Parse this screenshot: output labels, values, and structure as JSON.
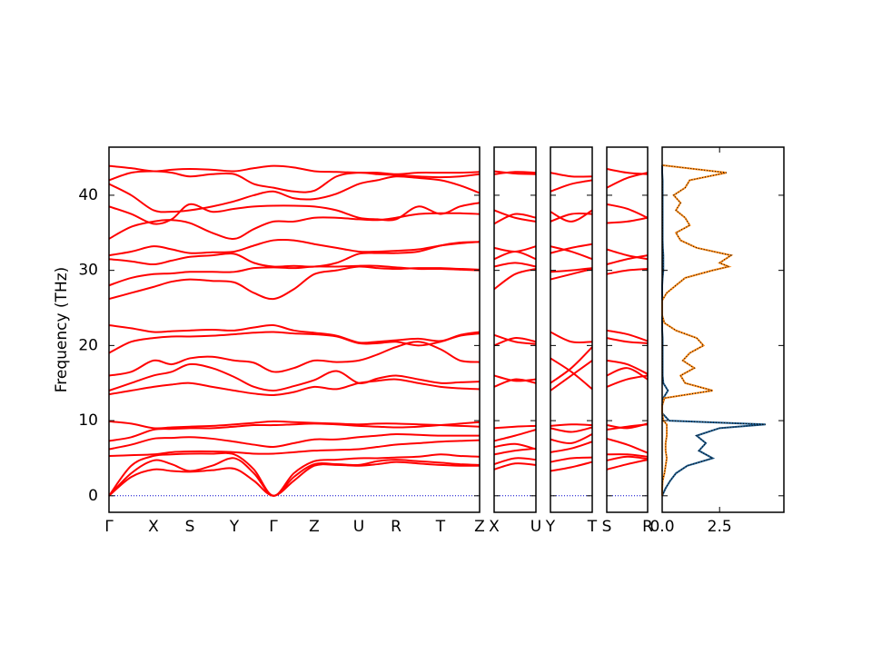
{
  "chart_data": {
    "type": "band_structure",
    "ylabel": "Frequency (THz)",
    "ylim": [
      -2.2,
      46.4
    ],
    "yticks": [
      0,
      10,
      20,
      30,
      40
    ],
    "band_color": "#ff0000",
    "zero_line_color": "#0000cc",
    "panels": [
      {
        "xlim": [
          0,
          4.08
        ],
        "xticks": [
          0,
          0.49,
          0.89,
          1.38,
          1.81,
          2.26,
          2.75,
          3.16,
          3.65,
          4.08
        ],
        "labels": [
          "Γ",
          "X",
          "S",
          "Y",
          "Γ",
          "Z",
          "U",
          "R",
          "T",
          "Z"
        ],
        "x": [
          0,
          0.245,
          0.49,
          0.69,
          0.89,
          1.135,
          1.38,
          1.595,
          1.81,
          2.035,
          2.26,
          2.505,
          2.75,
          2.955,
          3.16,
          3.405,
          3.65,
          3.865,
          4.08
        ],
        "bands": [
          [
            0,
            2.5,
            3.5,
            3.3,
            3.2,
            3.4,
            3.6,
            2,
            0,
            2,
            4,
            4.1,
            4.0,
            4.2,
            4.5,
            4.3,
            4.1,
            4.0,
            4.0
          ],
          [
            0,
            3,
            4.7,
            4.2,
            3.3,
            4,
            5,
            3,
            0,
            2.5,
            4.2,
            4.2,
            4.1,
            4.6,
            4.8,
            4.6,
            4.4,
            4.2,
            4.1
          ],
          [
            0,
            4,
            5.3,
            5.5,
            5.6,
            5.6,
            5.5,
            3.5,
            0,
            3,
            4.6,
            4.8,
            5,
            5,
            5.1,
            5.2,
            5.5,
            5.3,
            5.2
          ],
          [
            5.3,
            5.4,
            5.5,
            5.8,
            5.9,
            5.9,
            5.8,
            5.6,
            5.6,
            5.8,
            6,
            6.1,
            6.2,
            6.5,
            6.8,
            7,
            7.2,
            7.3,
            7.4
          ],
          [
            6.2,
            6.8,
            7.6,
            7.7,
            7.8,
            7.6,
            7.2,
            6.8,
            6.5,
            7,
            7.5,
            7.5,
            7.8,
            8,
            8.2,
            8.1,
            8,
            8,
            8
          ],
          [
            7.3,
            7.8,
            8.8,
            8.9,
            9,
            9,
            9.2,
            9.4,
            9.4,
            9.5,
            9.6,
            9.5,
            9.3,
            9.2,
            9.1,
            9.2,
            9.4,
            9.6,
            9.8
          ],
          [
            9.9,
            9.6,
            9.0,
            9.1,
            9.2,
            9.3,
            9.5,
            9.7,
            9.9,
            9.8,
            9.7,
            9.6,
            9.5,
            9.6,
            9.6,
            9.5,
            9.4,
            9.3,
            9.2
          ],
          [
            13.5,
            14,
            14.5,
            14.8,
            15,
            14.5,
            14.0,
            13.6,
            13.4,
            13.8,
            14.5,
            14.2,
            15.0,
            15.3,
            15.5,
            15.0,
            14.5,
            14.3,
            14.2
          ],
          [
            14,
            15,
            16,
            16.5,
            17.5,
            17,
            15.8,
            14.5,
            14.0,
            14.6,
            15.4,
            16.6,
            15.0,
            15.6,
            16,
            15.5,
            15,
            15.1,
            15.2
          ],
          [
            16,
            16.5,
            18,
            17.5,
            18.3,
            18.5,
            18,
            17.7,
            16.5,
            17.0,
            18,
            17.8,
            18,
            18.8,
            19.8,
            20.5,
            19.5,
            18.0,
            17.8
          ],
          [
            19.0,
            20.5,
            21.0,
            21.2,
            21.2,
            21.3,
            21.5,
            21.7,
            21.8,
            21.6,
            21.5,
            21.2,
            20.3,
            20.3,
            20.5,
            20.0,
            20.5,
            21.3,
            21.6
          ],
          [
            22.7,
            22.3,
            21.8,
            21.9,
            22.0,
            22.1,
            22,
            22.4,
            22.7,
            22.0,
            21.7,
            21.3,
            20.4,
            20.5,
            20.7,
            20.9,
            20.6,
            21.4,
            21.8
          ],
          [
            26.2,
            27,
            27.8,
            28.5,
            28.8,
            28.6,
            28.4,
            27,
            26.2,
            27.5,
            29.5,
            30,
            30.5,
            30.3,
            30.2,
            30.3,
            30.3,
            30.2,
            30.1
          ],
          [
            28,
            29,
            29.5,
            29.6,
            29.8,
            29.8,
            29.8,
            30.3,
            30.4,
            30.3,
            30.5,
            30.5,
            30.6,
            30.6,
            30.4,
            30.2,
            30.2,
            30.1,
            30
          ],
          [
            31.5,
            31.2,
            30.8,
            31.3,
            31.8,
            32,
            32.2,
            31,
            30.5,
            30.6,
            30.5,
            31,
            32.2,
            32.3,
            32.3,
            32.5,
            33.3,
            33.7,
            33.8
          ],
          [
            32,
            32.5,
            33.2,
            32.8,
            32.3,
            32.4,
            32.5,
            33.3,
            34.0,
            34,
            33.5,
            33,
            32.5,
            32.5,
            32.6,
            32.8,
            33.3,
            33.6,
            33.8
          ],
          [
            34.2,
            35.8,
            36.5,
            36.7,
            36.3,
            35,
            34.2,
            35.5,
            36.5,
            36.5,
            37,
            37,
            36.8,
            36.7,
            37,
            37.5,
            37.6,
            37.6,
            37.5
          ],
          [
            38.5,
            37.5,
            36.2,
            36.8,
            38.8,
            37.8,
            38.2,
            38.5,
            38.6,
            38.6,
            38.5,
            38,
            37,
            36.8,
            36.8,
            38.5,
            37.5,
            38.5,
            39.0
          ],
          [
            41.5,
            40,
            38,
            37.8,
            38,
            38.5,
            39.2,
            40,
            40.5,
            39.6,
            39.5,
            40.2,
            41.5,
            42,
            42.5,
            42.3,
            42,
            41.3,
            40.3
          ],
          [
            42,
            43,
            43.2,
            43.0,
            42.5,
            42.8,
            42.8,
            41.5,
            41.0,
            40.5,
            40.6,
            42.5,
            43,
            42.8,
            42.7,
            42.5,
            42.4,
            42.5,
            42.8
          ],
          [
            43.9,
            43.6,
            43.2,
            43.4,
            43.5,
            43.4,
            43.2,
            43.6,
            43.9,
            43.7,
            43.2,
            43.1,
            43.0,
            43.0,
            42.8,
            43.0,
            43.0,
            43.0,
            43.1
          ]
        ]
      },
      {
        "xlim": [
          0,
          0.46
        ],
        "xticks": [
          0,
          0.46
        ],
        "labels": [
          "X",
          "U"
        ],
        "x": [
          0,
          0.23,
          0.46
        ],
        "bands": [
          [
            3.5,
            4.3,
            4.1
          ],
          [
            4.2,
            5,
            4.8
          ],
          [
            5.5,
            6,
            6.3
          ],
          [
            6.5,
            6.9,
            6.2
          ],
          [
            7.3,
            8,
            8.8
          ],
          [
            9,
            9.2,
            9.3
          ],
          [
            14.5,
            15.5,
            15
          ],
          [
            16,
            15.3,
            15.5
          ],
          [
            20,
            21,
            20.5
          ],
          [
            21.4,
            20.5,
            20.2
          ],
          [
            27.5,
            29.5,
            30.2
          ],
          [
            30.5,
            31,
            30.5
          ],
          [
            31.5,
            32.5,
            31.5
          ],
          [
            33,
            32.5,
            33.2
          ],
          [
            36.2,
            37.5,
            37
          ],
          [
            38,
            37,
            36.5
          ],
          [
            42.8,
            43.1,
            43
          ],
          [
            43.2,
            42.9,
            42.8
          ]
        ]
      },
      {
        "xlim": [
          0,
          0.46
        ],
        "xticks": [
          0,
          0.46
        ],
        "labels": [
          "Y",
          "T"
        ],
        "x": [
          0,
          0.23,
          0.46
        ],
        "bands": [
          [
            3.3,
            3.8,
            4.5
          ],
          [
            4.5,
            5,
            5.1
          ],
          [
            5.8,
            6.3,
            7.2
          ],
          [
            7.5,
            7.0,
            8.2
          ],
          [
            9,
            8.5,
            9.1
          ],
          [
            9.3,
            9.5,
            9.4
          ],
          [
            14,
            16,
            18
          ],
          [
            15,
            17,
            19.8
          ],
          [
            18.3,
            16.5,
            14.2
          ],
          [
            21.8,
            20.5,
            20.5
          ],
          [
            28.8,
            29.5,
            30.2
          ],
          [
            29.8,
            30,
            30.3
          ],
          [
            32.3,
            33,
            33.5
          ],
          [
            33.2,
            32.5,
            31.5
          ],
          [
            36.5,
            37.5,
            37.5
          ],
          [
            37.8,
            36.5,
            38
          ],
          [
            40.5,
            41.5,
            42
          ],
          [
            43,
            42.5,
            42.5
          ]
        ]
      },
      {
        "xlim": [
          0,
          0.45
        ],
        "xticks": [
          0,
          0.45
        ],
        "labels": [
          "S",
          "R"
        ],
        "x": [
          0,
          0.225,
          0.45
        ],
        "bands": [
          [
            3.5,
            4.2,
            4.8
          ],
          [
            4.7,
            5.2,
            4.9
          ],
          [
            5.5,
            5.5,
            5.2
          ],
          [
            7.6,
            6.8,
            5.7
          ],
          [
            8.8,
            9.2,
            9.5
          ],
          [
            9.4,
            9.0,
            9.6
          ],
          [
            14.5,
            15.5,
            16
          ],
          [
            16,
            17,
            15.5
          ],
          [
            18,
            17.5,
            16.2
          ],
          [
            21,
            20.5,
            20.3
          ],
          [
            22,
            21.5,
            20.6
          ],
          [
            29.5,
            30,
            30.2
          ],
          [
            30.8,
            31.5,
            32
          ],
          [
            32.8,
            32,
            31.5
          ],
          [
            36.3,
            36.5,
            37
          ],
          [
            38.8,
            38.2,
            37
          ],
          [
            41,
            42.3,
            43
          ],
          [
            43.5,
            43,
            42.8
          ]
        ]
      }
    ],
    "dos": {
      "xlim": [
        0,
        5.3
      ],
      "xticks": [
        {
          "value": 0,
          "label": "0.0"
        },
        2.5
      ],
      "freq": [
        0,
        1,
        2,
        3,
        4,
        5,
        6,
        7,
        8,
        9,
        9.5,
        10,
        11,
        12,
        13,
        14,
        15,
        16,
        17,
        18,
        19,
        20,
        21,
        22,
        23,
        24,
        25,
        26,
        27,
        28,
        29,
        30,
        30.5,
        31,
        32,
        33,
        34,
        35,
        36,
        37,
        38,
        39,
        40,
        41,
        42,
        43,
        44
      ],
      "series": [
        {
          "color": "#1f5b8c",
          "values": [
            0,
            0.15,
            0.35,
            0.6,
            1.1,
            2.2,
            1.6,
            1.9,
            1.5,
            2.5,
            4.5,
            0.3,
            0,
            0,
            0.05,
            0.25,
            0.05,
            0.02,
            0.02,
            0.02,
            0.02,
            0.02,
            0.02,
            0,
            0,
            0,
            0,
            0,
            0,
            0,
            0.02,
            0.05,
            0.05,
            0.05,
            0.05,
            0.03,
            0.02,
            0.02,
            0.02,
            0.02,
            0.02,
            0.02,
            0.02,
            0.02,
            0.02,
            0,
            0
          ]
        },
        {
          "color": "#ff8c1a",
          "values": [
            0,
            0,
            0.02,
            0.1,
            0.15,
            0.2,
            0.15,
            0.15,
            0.2,
            0.2,
            0.2,
            0.05,
            0,
            0,
            0.1,
            2.2,
            1.0,
            0.8,
            1.4,
            0.9,
            1.2,
            1.8,
            1.5,
            0.6,
            0.1,
            0,
            0,
            0,
            0.2,
            0.6,
            1.0,
            2.2,
            2.9,
            2.5,
            3.0,
            1.5,
            0.8,
            0.6,
            1.2,
            1.0,
            0.6,
            0.8,
            0.5,
            1.0,
            1.2,
            2.8,
            0
          ]
        }
      ]
    }
  }
}
